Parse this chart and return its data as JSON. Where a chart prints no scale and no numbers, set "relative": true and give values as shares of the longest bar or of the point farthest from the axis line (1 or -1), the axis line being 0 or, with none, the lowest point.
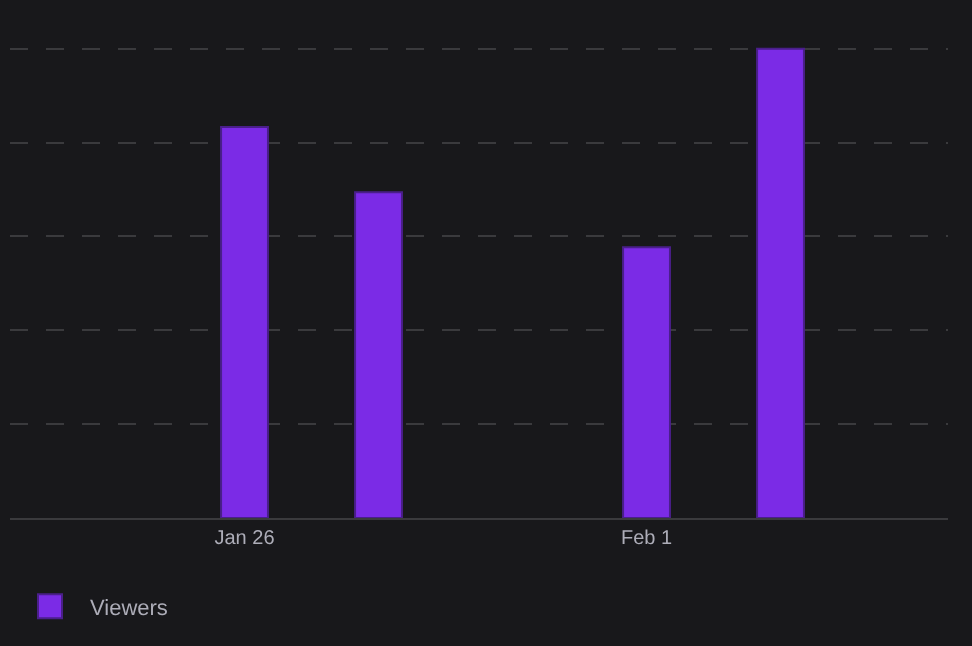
{
  "chart_data": {
    "type": "bar",
    "relative": true,
    "categories": [
      null,
      null,
      null,
      "Jan 26",
      null,
      null,
      null,
      null,
      null,
      "Feb 1",
      null,
      null,
      null,
      null
    ],
    "series": [
      {
        "name": "Viewers",
        "color": "#7b2be6",
        "values": [
          null,
          null,
          null,
          0.833,
          null,
          0.694,
          null,
          null,
          null,
          0.577,
          null,
          1.0,
          null,
          null
        ]
      }
    ],
    "grid": "y",
    "legend": "bottom left"
  }
}
